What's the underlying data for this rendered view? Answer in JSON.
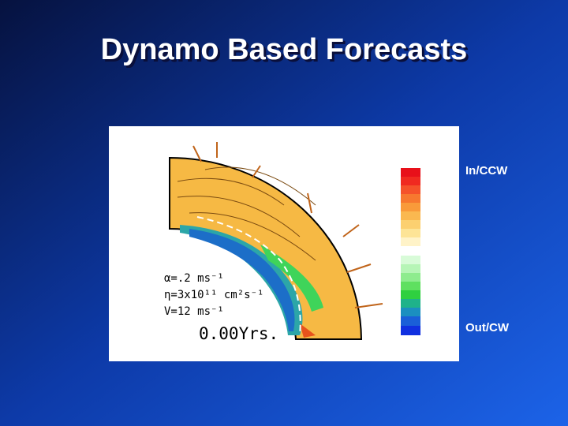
{
  "header": {
    "title": "Dynamo Based Forecasts"
  },
  "figure": {
    "parameters": [
      "α=.2 ms⁻¹",
      "η=3x10¹¹ cm²s⁻¹",
      "V=12 ms⁻¹"
    ],
    "time": "0.00Yrs.",
    "colorbar": {
      "top_label": "In/CCW",
      "bottom_label": "Out/CW"
    }
  }
}
